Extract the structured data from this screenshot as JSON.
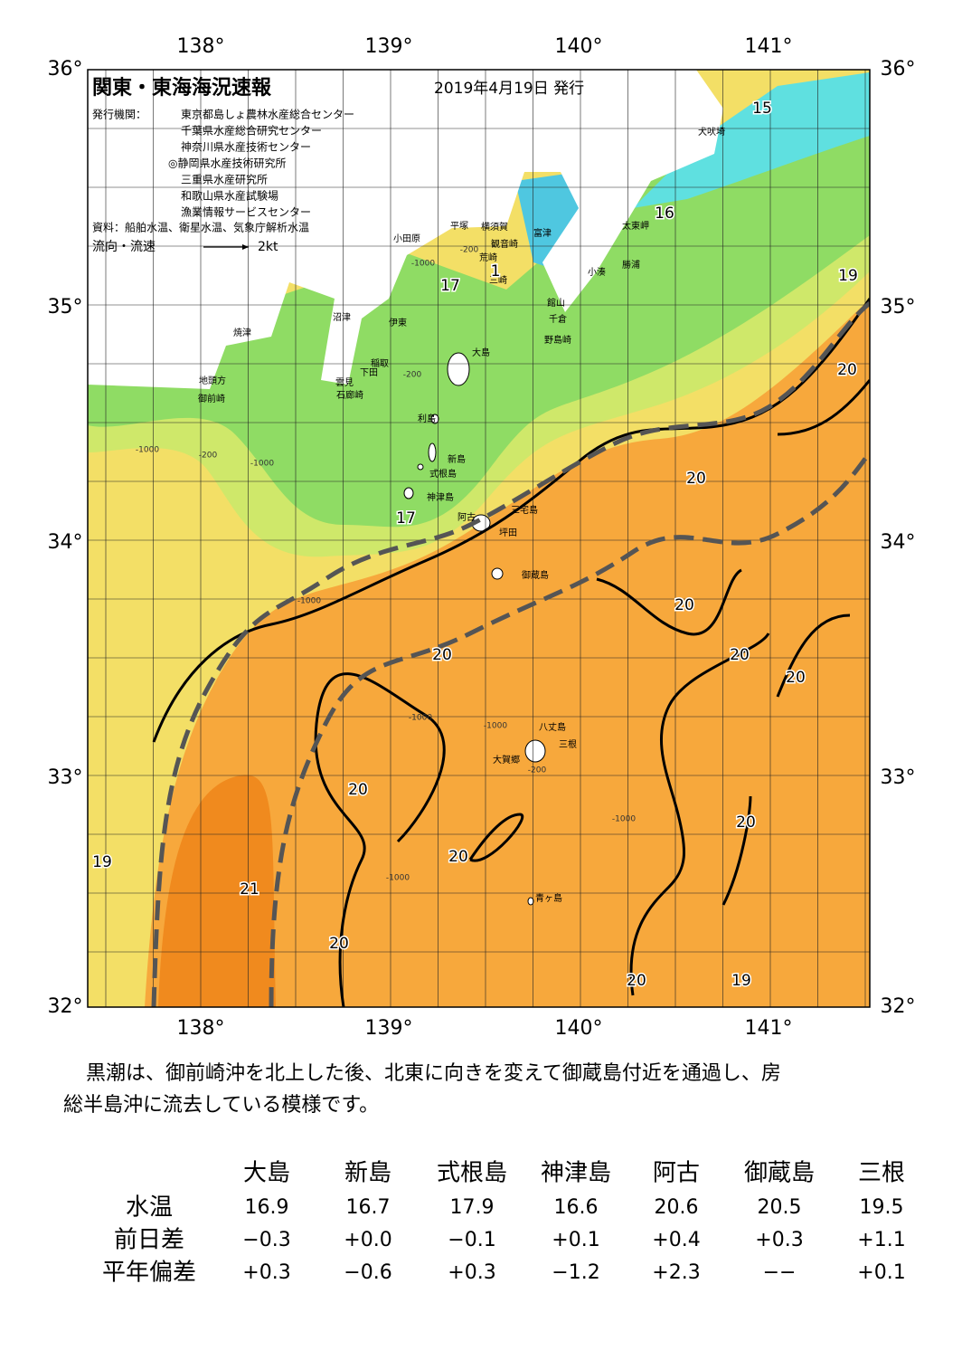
{
  "header": {
    "title": "関東・東海海況速報",
    "date": "2019年4月19日 発行",
    "agencies_label": "発行機関：",
    "agencies": [
      "東京都島しょ農林水産総合センター",
      "千葉県水産総合研究センター",
      "神奈川県水産技術センター",
      "◎静岡県水産技術研究所",
      "三重県水産研究所",
      "和歌山県水産試験場",
      "漁業情報サービスセンター"
    ],
    "source": "資料：船舶水温、衛星水温、気象庁解析水温",
    "legend_label": "流向・流速",
    "legend_scale": "2kt"
  },
  "map": {
    "lon_ticks": [
      "138°",
      "139°",
      "140°",
      "141°"
    ],
    "lat_ticks": [
      "36°",
      "35°",
      "34°",
      "33°",
      "32°"
    ],
    "places": [
      "小田原",
      "平塚",
      "横須賀",
      "観音崎",
      "荒崎",
      "三崎",
      "富津",
      "太東岬",
      "勝浦",
      "小湊",
      "館山",
      "千倉",
      "野島崎",
      "犬吠埼",
      "沼津",
      "伊東",
      "稲取",
      "下田",
      "雲見",
      "石廊崎",
      "焼津",
      "地頭方",
      "御前崎",
      "大島",
      "利島",
      "新島",
      "式根島",
      "神津島",
      "阿古",
      "三宅島",
      "坪田",
      "御蔵島",
      "八丈島",
      "三根",
      "大賀郷",
      "青ヶ島"
    ],
    "contour_labels": [
      "15",
      "16",
      "17",
      "1",
      "17",
      "19",
      "20",
      "20",
      "20",
      "20",
      "20",
      "20",
      "20",
      "20",
      "20",
      "19",
      "21",
      "20",
      "20",
      "19"
    ],
    "depth_labels": [
      "-200",
      "-1000",
      "-200",
      "-1000",
      "-200",
      "-1000",
      "-1000",
      "-1000",
      "-200",
      "-1000",
      "-1000",
      "-1000"
    ]
  },
  "paragraph": {
    "lines": [
      "黒潮は、御前崎沖を北上した後、北東に向きを変えて御蔵島付近を通過し、房",
      "総半島沖に流去している模様です。"
    ]
  },
  "table": {
    "columns": [
      "大島",
      "新島",
      "式根島",
      "神津島",
      "阿古",
      "御蔵島",
      "三根"
    ],
    "rows": [
      {
        "label": "水温",
        "cells": [
          "16.9",
          "16.7",
          "17.9",
          "16.6",
          "20.6",
          "20.5",
          "19.5"
        ]
      },
      {
        "label": "前日差",
        "cells": [
          "−0.3",
          "+0.0",
          "−0.1",
          "+0.1",
          "+0.4",
          "+0.3",
          "+1.1"
        ]
      },
      {
        "label": "平年偏差",
        "cells": [
          "+0.3",
          "−0.6",
          "+0.3",
          "−1.2",
          "+2.3",
          "−−",
          "+0.1"
        ]
      }
    ]
  }
}
